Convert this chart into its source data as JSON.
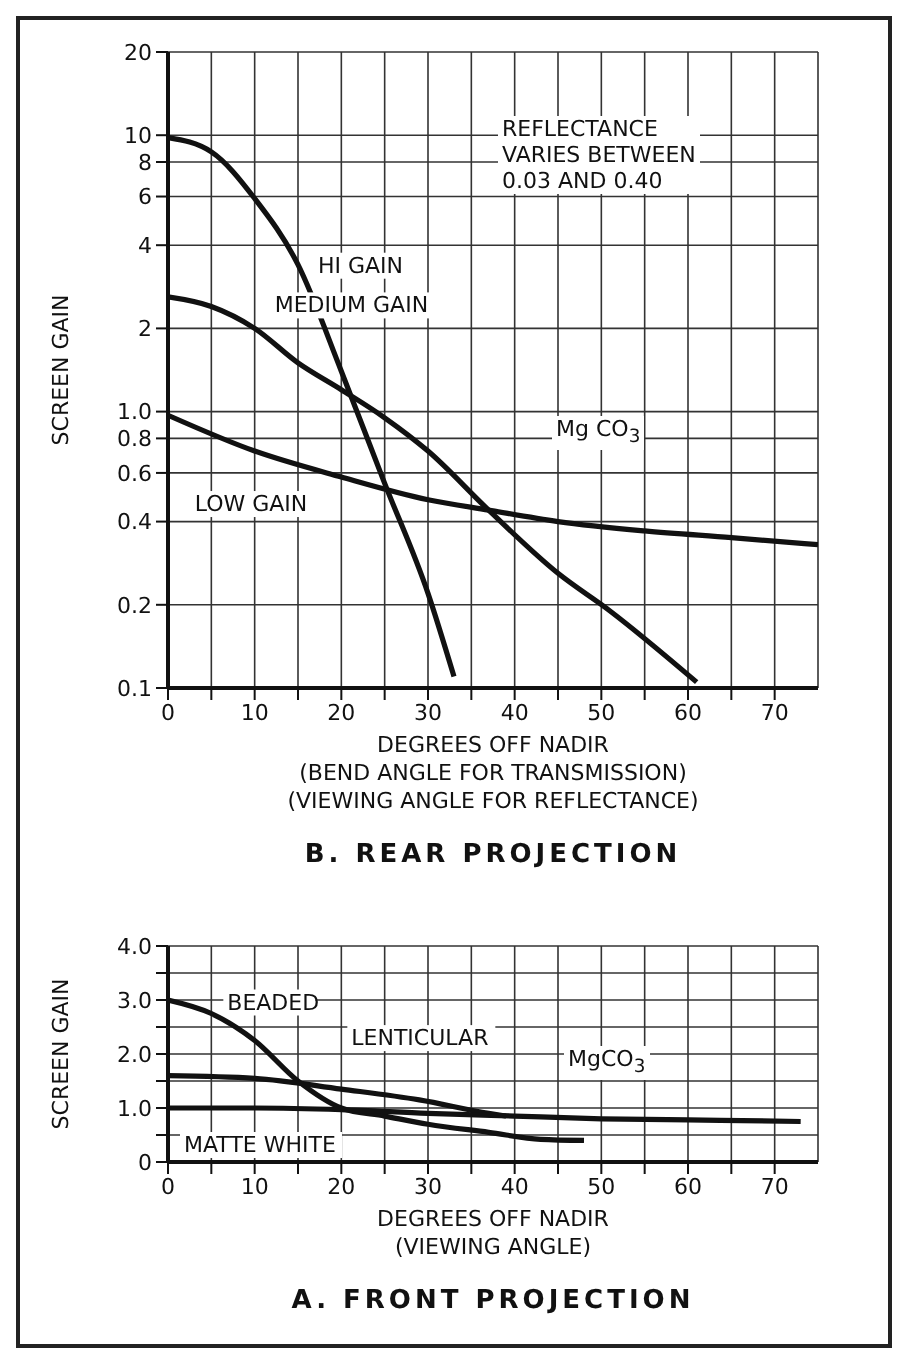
{
  "chart_data": [
    {
      "type": "line",
      "title": "B. REAR PROJECTION",
      "xlabel": "DEGREES OFF NADIR\n(BEND ANGLE FOR TRANSMISSION)\n(VIEWING ANGLE FOR REFLECTANCE)",
      "ylabel": "SCREEN GAIN",
      "log": "y",
      "grid": true,
      "marker": "none",
      "line_style": "solid",
      "legend": false,
      "xlim": [
        0,
        75
      ],
      "xticks": [
        0,
        {
          "value": 5,
          "label": null
        },
        10,
        {
          "value": 15,
          "label": null
        },
        20,
        {
          "value": 25,
          "label": null
        },
        30,
        {
          "value": 35,
          "label": null
        },
        40,
        {
          "value": 45,
          "label": null
        },
        50,
        {
          "value": 55,
          "label": null
        },
        60,
        {
          "value": 65,
          "label": null
        },
        70
      ],
      "ylim": [
        0.1,
        20
      ],
      "yticks": [
        {
          "value": 0.1,
          "label": "0.1"
        },
        {
          "value": 0.2,
          "label": "0.2"
        },
        {
          "value": 0.4,
          "label": "0.4"
        },
        {
          "value": 0.6,
          "label": "0.6"
        },
        {
          "value": 0.8,
          "label": "0.8"
        },
        {
          "value": 1,
          "label": "1.0"
        },
        2,
        4,
        6,
        8,
        10,
        20
      ],
      "series": [
        {
          "name": "HI GAIN",
          "color": "#111111",
          "x": [
            0,
            5,
            10,
            15,
            20,
            25,
            30,
            33
          ],
          "values": [
            9.8,
            8.7,
            5.9,
            3.4,
            1.4,
            0.55,
            0.22,
            0.11
          ]
        },
        {
          "name": "MEDIUM GAIN",
          "color": "#111111",
          "x": [
            0,
            5,
            10,
            15,
            20,
            25,
            30,
            37,
            45,
            51,
            61
          ],
          "values": [
            2.6,
            2.4,
            2.0,
            1.5,
            1.2,
            0.95,
            0.72,
            0.44,
            0.26,
            0.19,
            0.105
          ]
        },
        {
          "name": "LOW GAIN",
          "color": "#111111",
          "x": [
            0,
            10,
            20,
            30,
            37,
            45,
            55,
            65,
            75
          ],
          "values": [
            0.97,
            0.72,
            0.58,
            0.48,
            0.44,
            0.4,
            0.37,
            0.35,
            0.33
          ]
        }
      ],
      "annotations": [
        "REFLECTANCE\nVARIES BETWEEN\n0.03 AND 0.40",
        "Mg CO$_{3}$"
      ]
    },
    {
      "type": "line",
      "title": "A. FRONT PROJECTION",
      "xlabel": "DEGREES OFF NADIR\n(VIEWING ANGLE)",
      "ylabel": "SCREEN GAIN",
      "grid": true,
      "marker": "none",
      "line_style": "solid",
      "legend": false,
      "xlim": [
        0,
        75
      ],
      "xticks": [
        0,
        {
          "value": 5,
          "label": null
        },
        10,
        {
          "value": 15,
          "label": null
        },
        20,
        {
          "value": 25,
          "label": null
        },
        30,
        {
          "value": 35,
          "label": null
        },
        40,
        {
          "value": 45,
          "label": null
        },
        50,
        {
          "value": 55,
          "label": null
        },
        60,
        {
          "value": 65,
          "label": null
        },
        70
      ],
      "ylim": [
        0,
        4
      ],
      "yticks": [
        0,
        {
          "value": 0.5,
          "label": null
        },
        {
          "value": 1,
          "label": "1.0"
        },
        {
          "value": 1.5,
          "label": null
        },
        {
          "value": 2,
          "label": "2.0"
        },
        {
          "value": 2.5,
          "label": null
        },
        {
          "value": 3,
          "label": "3.0"
        },
        {
          "value": 3.5,
          "label": null
        },
        {
          "value": 4,
          "label": "4.0"
        }
      ],
      "series": [
        {
          "name": "BEADED",
          "color": "#111111",
          "x": [
            0,
            5,
            10,
            15,
            20,
            25,
            30,
            37,
            43,
            48
          ],
          "values": [
            3.0,
            2.75,
            2.25,
            1.5,
            1.0,
            0.85,
            0.7,
            0.55,
            0.42,
            0.4
          ]
        },
        {
          "name": "LENTICULAR",
          "color": "#111111",
          "x": [
            0,
            10,
            20,
            29,
            37,
            39
          ],
          "values": [
            1.6,
            1.55,
            1.35,
            1.15,
            0.9,
            0.85
          ]
        },
        {
          "name": "MATTE WHITE",
          "color": "#111111",
          "x": [
            0,
            10,
            20,
            30,
            40,
            50,
            60,
            73
          ],
          "values": [
            1.0,
            1.0,
            0.97,
            0.9,
            0.85,
            0.8,
            0.78,
            0.75
          ]
        }
      ],
      "annotations": [
        "MgCO$_{3}$"
      ]
    }
  ]
}
